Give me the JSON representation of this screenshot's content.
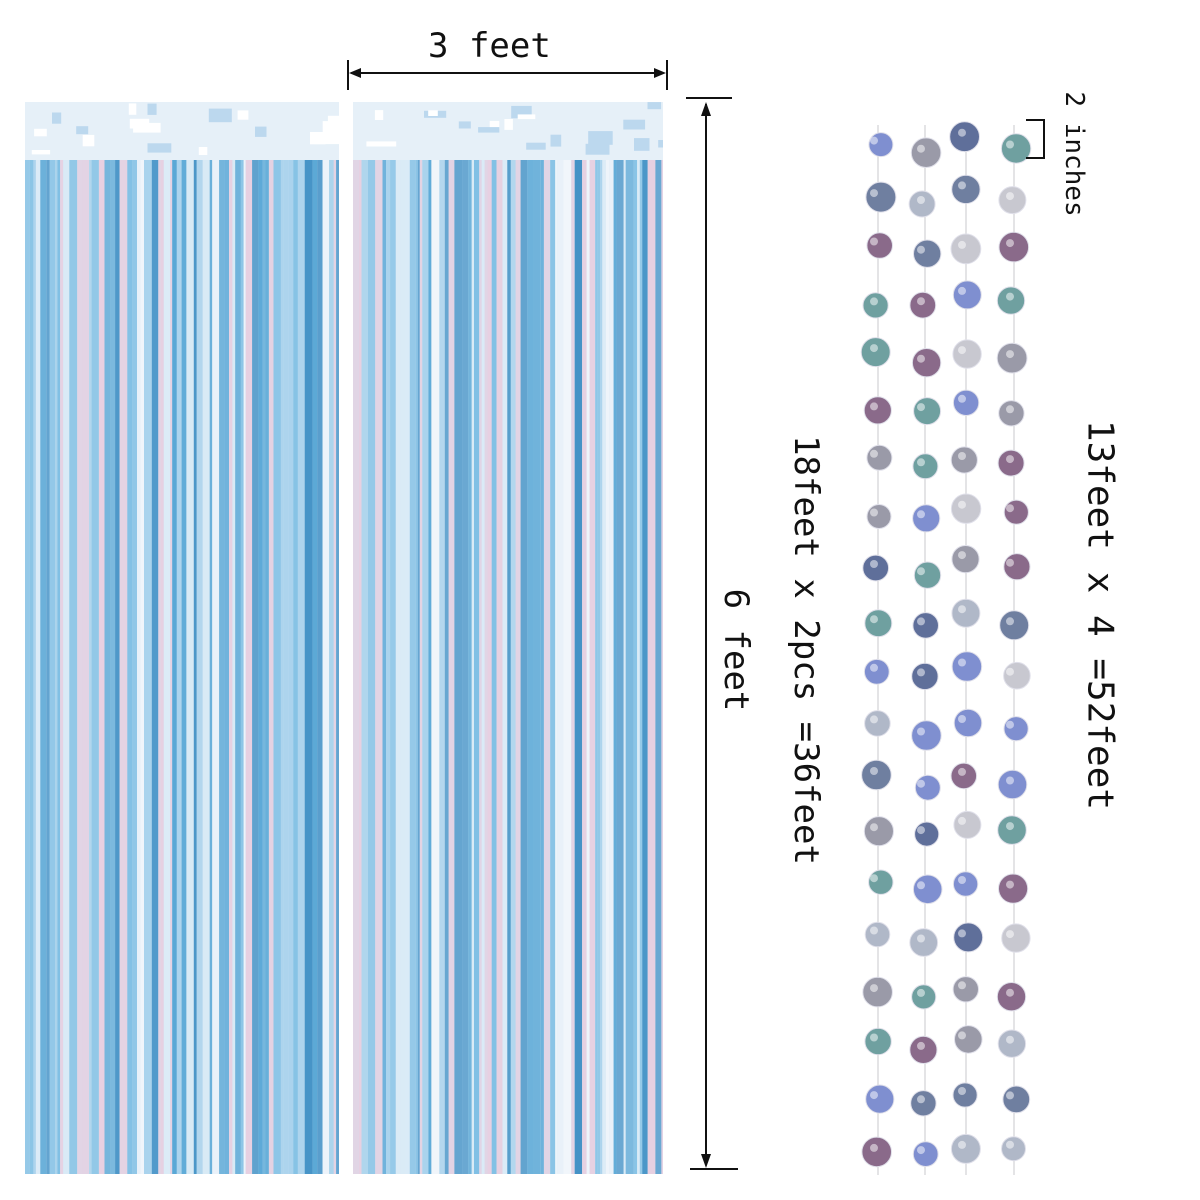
{
  "image": {
    "description_labels": {
      "width_label": "3 feet",
      "height_label": "6 feet",
      "dot_spacing_label": "2 inches",
      "curtain_total_label": "18feet x 2pcs =36feet",
      "garland_total_label": "13feet x 4 =52feet"
    },
    "colors": {
      "curtain_blue": "#5aa8d6",
      "curtain_light": "#dcecf7",
      "curtain_pink": "#e8cfe0",
      "curtain_header": "#e6f0f8",
      "dot_palette": [
        "#7f8fd0",
        "#9a9aa8",
        "#6f7fa0",
        "#5f6f9a",
        "#b0b8c8",
        "#8a6a8a",
        "#6fa0a0",
        "#c8c8d0"
      ]
    }
  }
}
